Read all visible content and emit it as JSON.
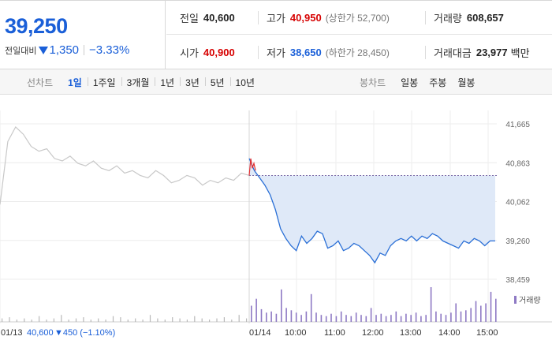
{
  "summary": {
    "price": "39,250",
    "diff_label": "전일대비",
    "diff_value": "1,350",
    "diff_pct": "−3.33%",
    "direction": "down",
    "color_down": "#1a5fd8",
    "color_up": "#d60000"
  },
  "stats": {
    "prev_close_label": "전일",
    "prev_close": "40,600",
    "high_label": "고가",
    "high": "40,950",
    "upper_limit": "(상한가 52,700)",
    "volume_label": "거래량",
    "volume": "608,657",
    "open_label": "시가",
    "open": "40,900",
    "low_label": "저가",
    "low": "38,650",
    "lower_limit": "(하한가 28,450)",
    "amount_label": "거래대금",
    "amount": "23,977",
    "amount_unit": "백만"
  },
  "line_tabs": {
    "label": "선차트",
    "items": [
      "1일",
      "1주일",
      "3개월",
      "1년",
      "3년",
      "5년",
      "10년"
    ],
    "active": "1일"
  },
  "candle_tabs": {
    "label": "봉차트",
    "items": [
      "일봉",
      "주봉",
      "월봉"
    ]
  },
  "chart_data": {
    "type": "line",
    "price_axis_ticks": [
      "41,665",
      "40,863",
      "40,062",
      "39,260",
      "38,459"
    ],
    "price_axis_values": [
      41665,
      40863,
      40062,
      39260,
      38459
    ],
    "ylim": [
      38459,
      41665
    ],
    "x_tick_labels": [
      "01/13",
      "01/14",
      "10:00",
      "11:00",
      "12:00",
      "13:00",
      "14:00",
      "15:00"
    ],
    "prev_day_summary": {
      "date": "01/13",
      "close": "40,600",
      "change": "▼450 (−1.10%)"
    },
    "previous_close_line": 40600,
    "volume_legend": "거래량",
    "series": [
      {
        "session": "01/13",
        "color": "#c8c8c8",
        "values": [
          40000,
          41300,
          41600,
          41450,
          41200,
          41100,
          41150,
          40950,
          40900,
          41000,
          40850,
          40800,
          40900,
          40750,
          40700,
          40800,
          40650,
          40700,
          40600,
          40550,
          40700,
          40600,
          40450,
          40500,
          40600,
          40550,
          40400,
          40500,
          40450,
          40550,
          40500,
          40650,
          40600
        ]
      },
      {
        "session": "01/14",
        "color": "#2a6fd6",
        "fill": "#dfe9f8",
        "values": [
          40950,
          40700,
          40550,
          40400,
          40200,
          39900,
          39500,
          39300,
          39150,
          39050,
          39350,
          39200,
          39300,
          39450,
          39400,
          39100,
          39150,
          39250,
          39050,
          39100,
          39200,
          39150,
          39050,
          38950,
          38800,
          39000,
          38950,
          39150,
          39250,
          39300,
          39250,
          39350,
          39250,
          39350,
          39300,
          39400,
          39350,
          39250,
          39200,
          39150,
          39100,
          39250,
          39200,
          39300,
          39250,
          39150,
          39250,
          39250
        ]
      }
    ],
    "volume": [
      3,
      4,
      2,
      3,
      2,
      5,
      2,
      3,
      6,
      2,
      3,
      4,
      2,
      3,
      2,
      5,
      4,
      2,
      3,
      2,
      6,
      3,
      2,
      4,
      3,
      2,
      5,
      3,
      2,
      3,
      4,
      2,
      6,
      3,
      14,
      20,
      11,
      8,
      9,
      7,
      28,
      12,
      10,
      8,
      6,
      9,
      24,
      8,
      6,
      5,
      7,
      5,
      9,
      6,
      5,
      8,
      6,
      5,
      12,
      6,
      7,
      5,
      6,
      9,
      5,
      7,
      6,
      8,
      5,
      6,
      30,
      9,
      7,
      6,
      8,
      16,
      9,
      10,
      12,
      18,
      14,
      16,
      26,
      20
    ]
  }
}
